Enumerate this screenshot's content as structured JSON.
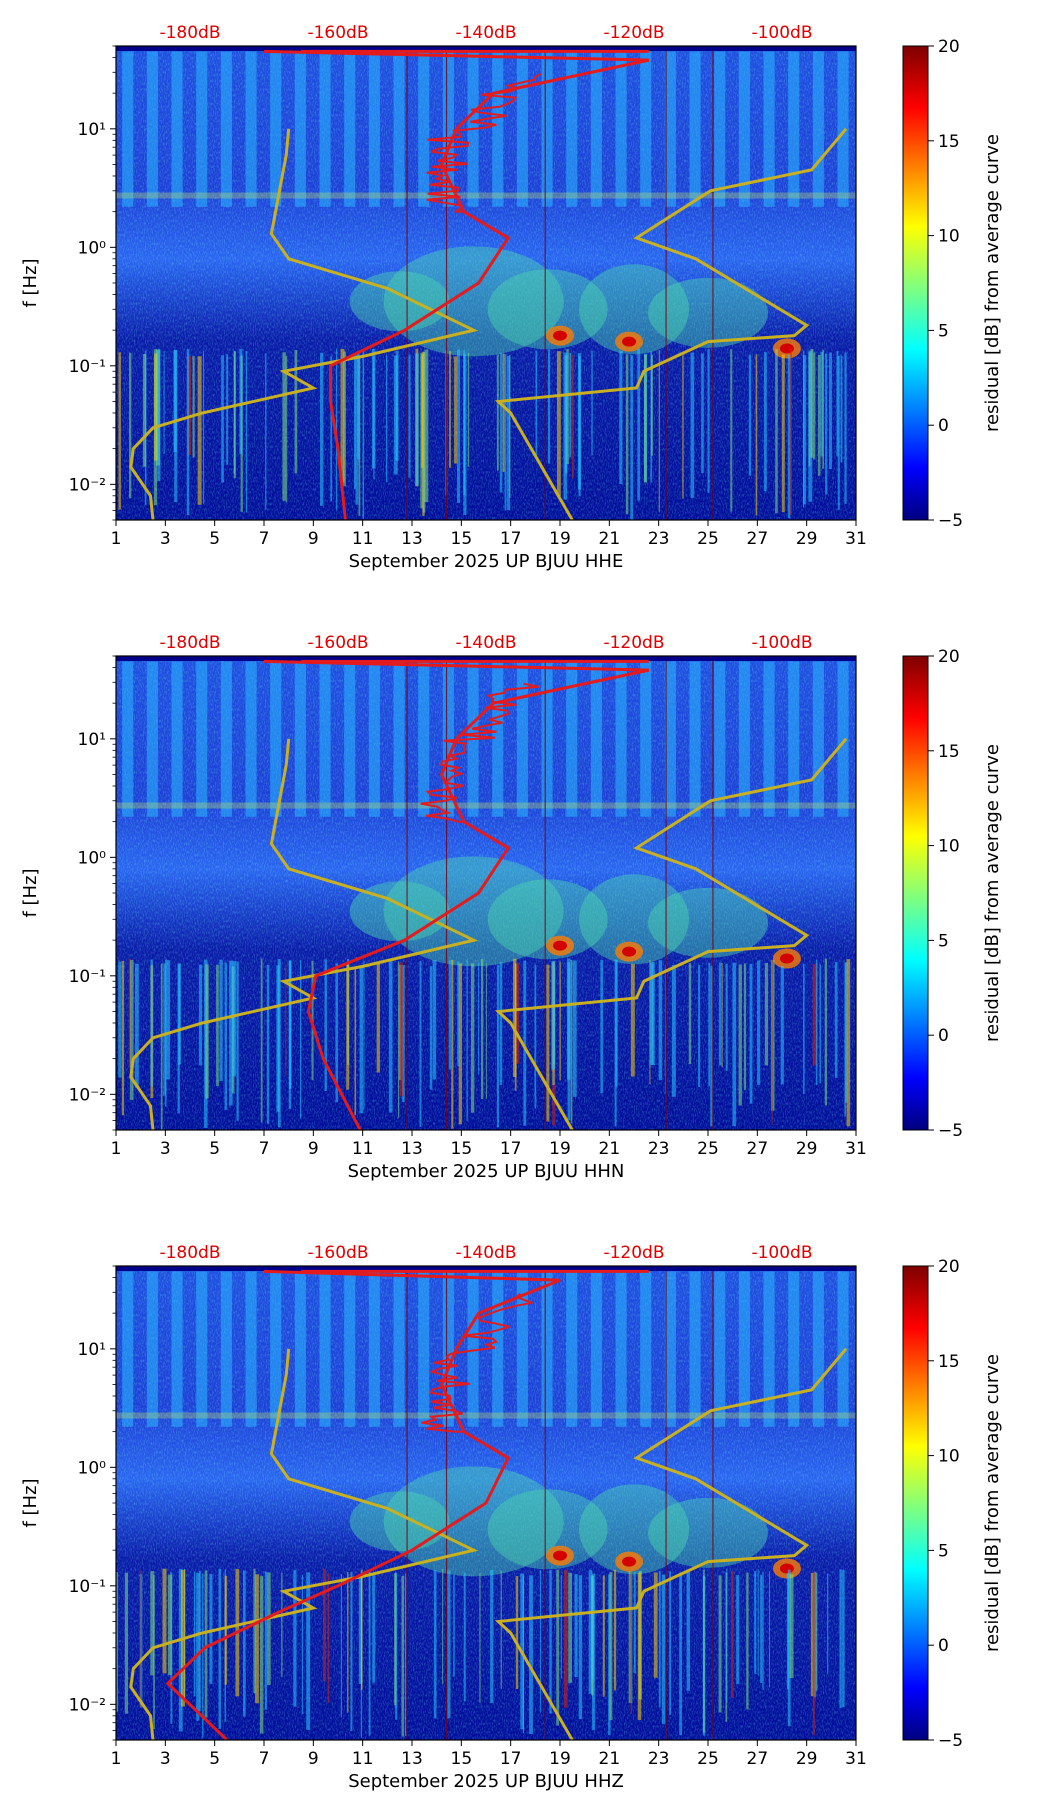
{
  "colors": {
    "noise_curve": "#e41a1c",
    "reference_curve": "#c9b021",
    "db_label": "#e00000"
  },
  "colorbar": {
    "label": "residual [dB] from average curve",
    "ticks": [
      "20",
      "15",
      "10",
      "5",
      "0",
      "−5"
    ],
    "range": [
      -5,
      20
    ],
    "colormap": "jet"
  },
  "db_labels": [
    "-180dB",
    "-160dB",
    "-140dB",
    "-120dB",
    "-100dB"
  ],
  "x_ticks": [
    "1",
    "3",
    "5",
    "7",
    "9",
    "11",
    "13",
    "15",
    "17",
    "19",
    "21",
    "23",
    "25",
    "27",
    "29",
    "31"
  ],
  "y_label": "f [Hz]",
  "chart_data": [
    {
      "type": "heatmap",
      "xlabel": "September 2025 UP BJUU  HHE",
      "ylabel": "f [Hz]",
      "xlim": [
        1,
        31
      ],
      "ylim": [
        0.005,
        50
      ],
      "yscale": "log",
      "y_ticks": [
        "10¹",
        "10⁰",
        "10⁻¹",
        "10⁻²"
      ],
      "noise_curve_db_vs_freq": [
        [
          -159,
          0.005
        ],
        [
          -160,
          0.02
        ],
        [
          -161,
          0.05
        ],
        [
          -161,
          0.1
        ],
        [
          -151,
          0.2
        ],
        [
          -141,
          0.5
        ],
        [
          -137,
          1.2
        ],
        [
          -143,
          2
        ],
        [
          -146,
          5
        ],
        [
          -144,
          10
        ],
        [
          -139,
          20
        ],
        [
          -118,
          38
        ],
        [
          -170,
          45
        ]
      ],
      "reference_curve": "NLNM/NHNM"
    },
    {
      "type": "heatmap",
      "xlabel": "September 2025 UP BJUU  HHN",
      "ylabel": "f [Hz]",
      "xlim": [
        1,
        31
      ],
      "ylim": [
        0.005,
        50
      ],
      "yscale": "log",
      "y_ticks": [
        "10¹",
        "10⁰",
        "10⁻¹",
        "10⁻²"
      ],
      "noise_curve_db_vs_freq": [
        [
          -157,
          0.005
        ],
        [
          -162,
          0.02
        ],
        [
          -164,
          0.05
        ],
        [
          -163,
          0.1
        ],
        [
          -151,
          0.2
        ],
        [
          -141,
          0.5
        ],
        [
          -137,
          1.2
        ],
        [
          -143,
          2
        ],
        [
          -146,
          5
        ],
        [
          -144,
          10
        ],
        [
          -139,
          20
        ],
        [
          -118,
          38
        ],
        [
          -170,
          45
        ]
      ],
      "reference_curve": "NLNM/NHNM"
    },
    {
      "type": "heatmap",
      "xlabel": "September 2025 UP BJUU  HHZ",
      "ylabel": "f [Hz]",
      "xlim": [
        1,
        31
      ],
      "ylim": [
        0.005,
        50
      ],
      "yscale": "log",
      "y_ticks": [
        "10¹",
        "10⁰",
        "10⁻¹",
        "10⁻²"
      ],
      "noise_curve_db_vs_freq": [
        [
          -175,
          0.005
        ],
        [
          -183,
          0.015
        ],
        [
          -178,
          0.03
        ],
        [
          -168,
          0.06
        ],
        [
          -160,
          0.1
        ],
        [
          -150,
          0.2
        ],
        [
          -140,
          0.5
        ],
        [
          -137,
          1.2
        ],
        [
          -143,
          2
        ],
        [
          -146,
          5
        ],
        [
          -144,
          10
        ],
        [
          -141,
          20
        ],
        [
          -130,
          38
        ],
        [
          -170,
          45
        ]
      ],
      "reference_curve": "NLNM/NHNM"
    }
  ]
}
